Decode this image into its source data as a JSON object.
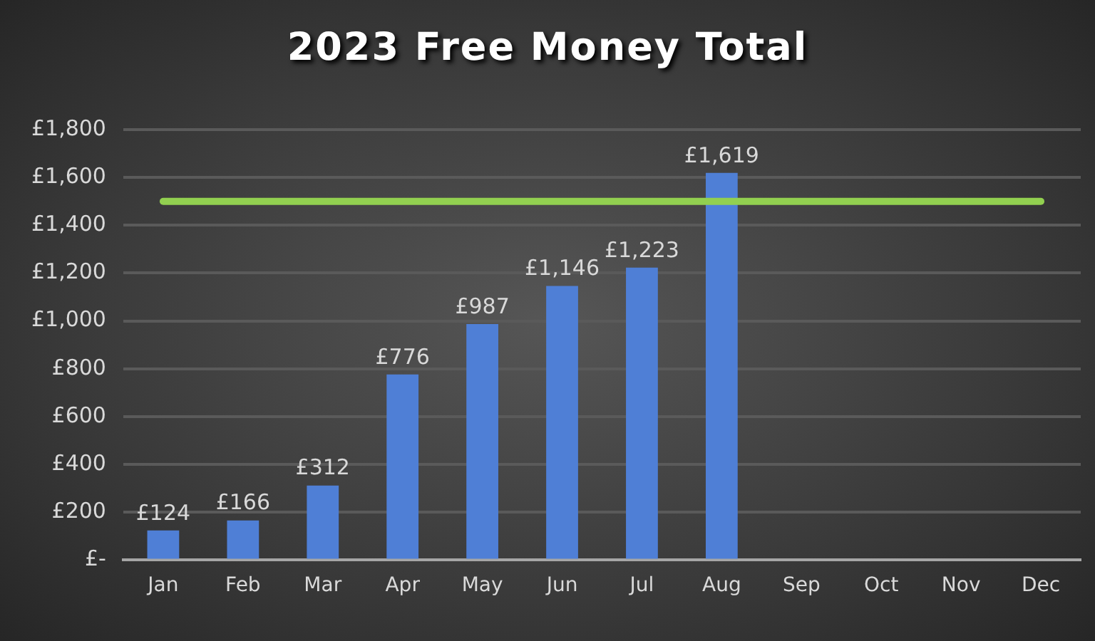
{
  "chart_data": {
    "type": "bar",
    "title": "2023 Free Money Total",
    "categories": [
      "Jan",
      "Feb",
      "Mar",
      "Apr",
      "May",
      "Jun",
      "Jul",
      "Aug",
      "Sep",
      "Oct",
      "Nov",
      "Dec"
    ],
    "series": [
      {
        "color": "#4f7fd6",
        "values": [
          124,
          166,
          312,
          776,
          987,
          1146,
          1223,
          1619,
          null,
          null,
          null,
          null
        ],
        "value_labels": [
          "£124",
          "£166",
          "£312",
          "£776",
          "£987",
          "£1,146",
          "£1,223",
          "£1,619",
          null,
          null,
          null,
          null
        ]
      }
    ],
    "ylim": [
      0,
      1800
    ],
    "yticks": [
      {
        "value": 0,
        "label": "£-"
      },
      {
        "value": 200,
        "label": "£200"
      },
      {
        "value": 400,
        "label": "£400"
      },
      {
        "value": 600,
        "label": "£600"
      },
      {
        "value": 800,
        "label": "£800"
      },
      {
        "value": 1000,
        "label": "£1,000"
      },
      {
        "value": 1200,
        "label": "£1,200"
      },
      {
        "value": 1400,
        "label": "£1,400"
      },
      {
        "value": 1600,
        "label": "£1,600"
      },
      {
        "value": 1800,
        "label": "£1,800"
      }
    ],
    "ref_lines": [
      {
        "axis": "y",
        "value": 1500,
        "color": "#92d050"
      }
    ],
    "grid": "y",
    "legend": false
  }
}
